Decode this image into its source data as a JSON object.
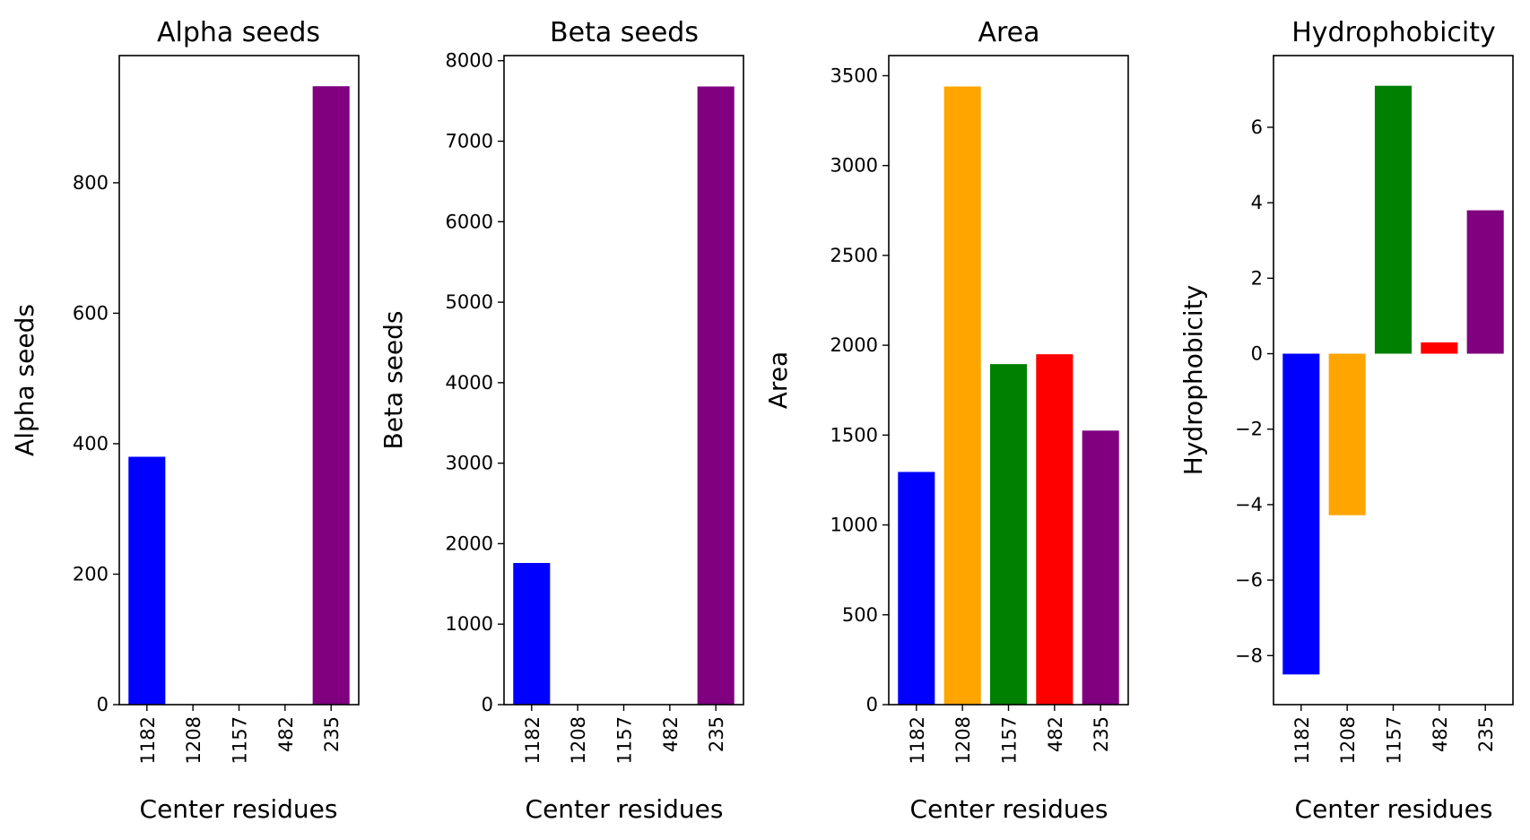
{
  "chart_data": [
    {
      "type": "bar",
      "title": "Alpha seeds",
      "xlabel": "Center residues",
      "ylabel": "Alpha seeds",
      "categories": [
        "1182",
        "1208",
        "1157",
        "482",
        "235"
      ],
      "values": [
        380,
        0,
        0,
        0,
        948
      ],
      "colors": [
        "#0000ff",
        "#ffa500",
        "#008000",
        "#ff0000",
        "#800080"
      ],
      "ylim": [
        0,
        995
      ],
      "yticks": [
        0,
        200,
        400,
        600,
        800
      ],
      "ytick_labels": [
        "0",
        "200",
        "400",
        "600",
        "800"
      ],
      "grid": false
    },
    {
      "type": "bar",
      "title": "Beta seeds",
      "xlabel": "Center residues",
      "ylabel": "Beta seeds",
      "categories": [
        "1182",
        "1208",
        "1157",
        "482",
        "235"
      ],
      "values": [
        1760,
        0,
        0,
        0,
        7680
      ],
      "colors": [
        "#0000ff",
        "#ffa500",
        "#008000",
        "#ff0000",
        "#800080"
      ],
      "ylim": [
        0,
        8064
      ],
      "yticks": [
        0,
        1000,
        2000,
        3000,
        4000,
        5000,
        6000,
        7000,
        8000
      ],
      "ytick_labels": [
        "0",
        "1000",
        "2000",
        "3000",
        "4000",
        "5000",
        "6000",
        "7000",
        "8000"
      ],
      "grid": false
    },
    {
      "type": "bar",
      "title": "Area",
      "xlabel": "Center residues",
      "ylabel": "Area",
      "categories": [
        "1182",
        "1208",
        "1157",
        "482",
        "235"
      ],
      "values": [
        1295,
        3440,
        1895,
        1950,
        1525
      ],
      "colors": [
        "#0000ff",
        "#ffa500",
        "#008000",
        "#ff0000",
        "#800080"
      ],
      "ylim": [
        0,
        3612
      ],
      "yticks": [
        0,
        500,
        1000,
        1500,
        2000,
        2500,
        3000,
        3500
      ],
      "ytick_labels": [
        "0",
        "500",
        "1000",
        "1500",
        "2000",
        "2500",
        "3000",
        "3500"
      ],
      "grid": false
    },
    {
      "type": "bar",
      "title": "Hydrophobicity",
      "xlabel": "Center residues",
      "ylabel": "Hydrophobicity",
      "categories": [
        "1182",
        "1208",
        "1157",
        "482",
        "235"
      ],
      "values": [
        -8.5,
        -4.28,
        7.1,
        0.3,
        3.8
      ],
      "colors": [
        "#0000ff",
        "#ffa500",
        "#008000",
        "#ff0000",
        "#800080"
      ],
      "ylim": [
        -9.3,
        7.9
      ],
      "yticks": [
        -8,
        -6,
        -4,
        -2,
        0,
        2,
        4,
        6
      ],
      "ytick_labels": [
        "−8",
        "−6",
        "−4",
        "−2",
        "0",
        "2",
        "4",
        "6"
      ],
      "grid": false
    }
  ]
}
